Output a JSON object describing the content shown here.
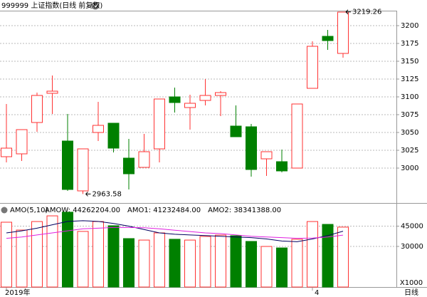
{
  "chart_data": [
    {
      "type": "candlestick",
      "title": "999999 上证指数(日线 前复权)",
      "period": "日线",
      "categories": [
        "2019年",
        null,
        null,
        null,
        null,
        null,
        null,
        null,
        null,
        null,
        null,
        null,
        null,
        null,
        null,
        null,
        null,
        null,
        null,
        null,
        "4",
        null,
        null
      ],
      "open": [
        3016,
        3020,
        3064,
        3105,
        3038,
        2968,
        3050,
        3063,
        3014,
        3001,
        3027,
        3100,
        3085,
        3095,
        3102,
        3059,
        3058,
        3013,
        3009,
        3000,
        3112,
        3185,
        3161
      ],
      "high": [
        3090,
        3054,
        3106,
        3130,
        3076,
        3027,
        3093,
        3063,
        3041,
        3048,
        3097,
        3113,
        3103,
        3125,
        3108,
        3088,
        3062,
        3023,
        3026,
        3090,
        3178,
        3194,
        3219.26
      ],
      "low": [
        3008,
        3010,
        3051,
        3076,
        2968,
        2963.58,
        3038,
        3022,
        2970,
        3001,
        3008,
        3078,
        3054,
        3088,
        3073,
        3044,
        2988,
        2989,
        2994,
        3000,
        3112,
        3166,
        3155
      ],
      "close": [
        3028,
        3054,
        3102,
        3108,
        2970,
        3027,
        3060,
        3028,
        2992,
        3023,
        3097,
        3092,
        3091,
        3102,
        3106,
        3044,
        2998,
        3023,
        2996,
        3090,
        3171,
        3179,
        3219
      ],
      "up_color": "#ff3232",
      "down_color": "#008000",
      "ylim": [
        2953,
        3221
      ],
      "yticks": [
        3000,
        3025,
        3050,
        3075,
        3100,
        3125,
        3150,
        3175,
        3200
      ],
      "grid": true
    },
    {
      "type": "bar",
      "legend_title": "AMO(5,10)",
      "unit_label": "X1000",
      "series": [
        {
          "name": "AMOW: 44262204.00",
          "color": "#000080",
          "kind": "bar",
          "values": [
            47900,
            42100,
            48400,
            52600,
            55300,
            41100,
            48400,
            45300,
            35800,
            34700,
            40000,
            35300,
            34700,
            37400,
            38400,
            37900,
            33700,
            30000,
            28900,
            35300,
            48400,
            46300,
            44262
          ]
        },
        {
          "name": "AMO1: 41232484.00",
          "color": "#000060",
          "kind": "line",
          "values": [
            40000,
            41500,
            43500,
            46000,
            48500,
            49000,
            48500,
            47000,
            45000,
            42500,
            40000,
            39000,
            38500,
            38000,
            37500,
            37000,
            36500,
            35500,
            34000,
            33500,
            35500,
            38000,
            41232
          ]
        },
        {
          "name": "AMO2: 38341388.00",
          "color": "#e020e0",
          "kind": "line",
          "values": [
            36000,
            37000,
            38500,
            40000,
            41500,
            43000,
            43500,
            44000,
            44000,
            43800,
            43000,
            42000,
            41000,
            40000,
            39500,
            38500,
            37500,
            37000,
            36500,
            36000,
            36200,
            37000,
            38341
          ]
        }
      ],
      "ylim": [
        0,
        60000
      ],
      "yticks": [
        30000,
        45000
      ],
      "grid": true
    }
  ]
}
